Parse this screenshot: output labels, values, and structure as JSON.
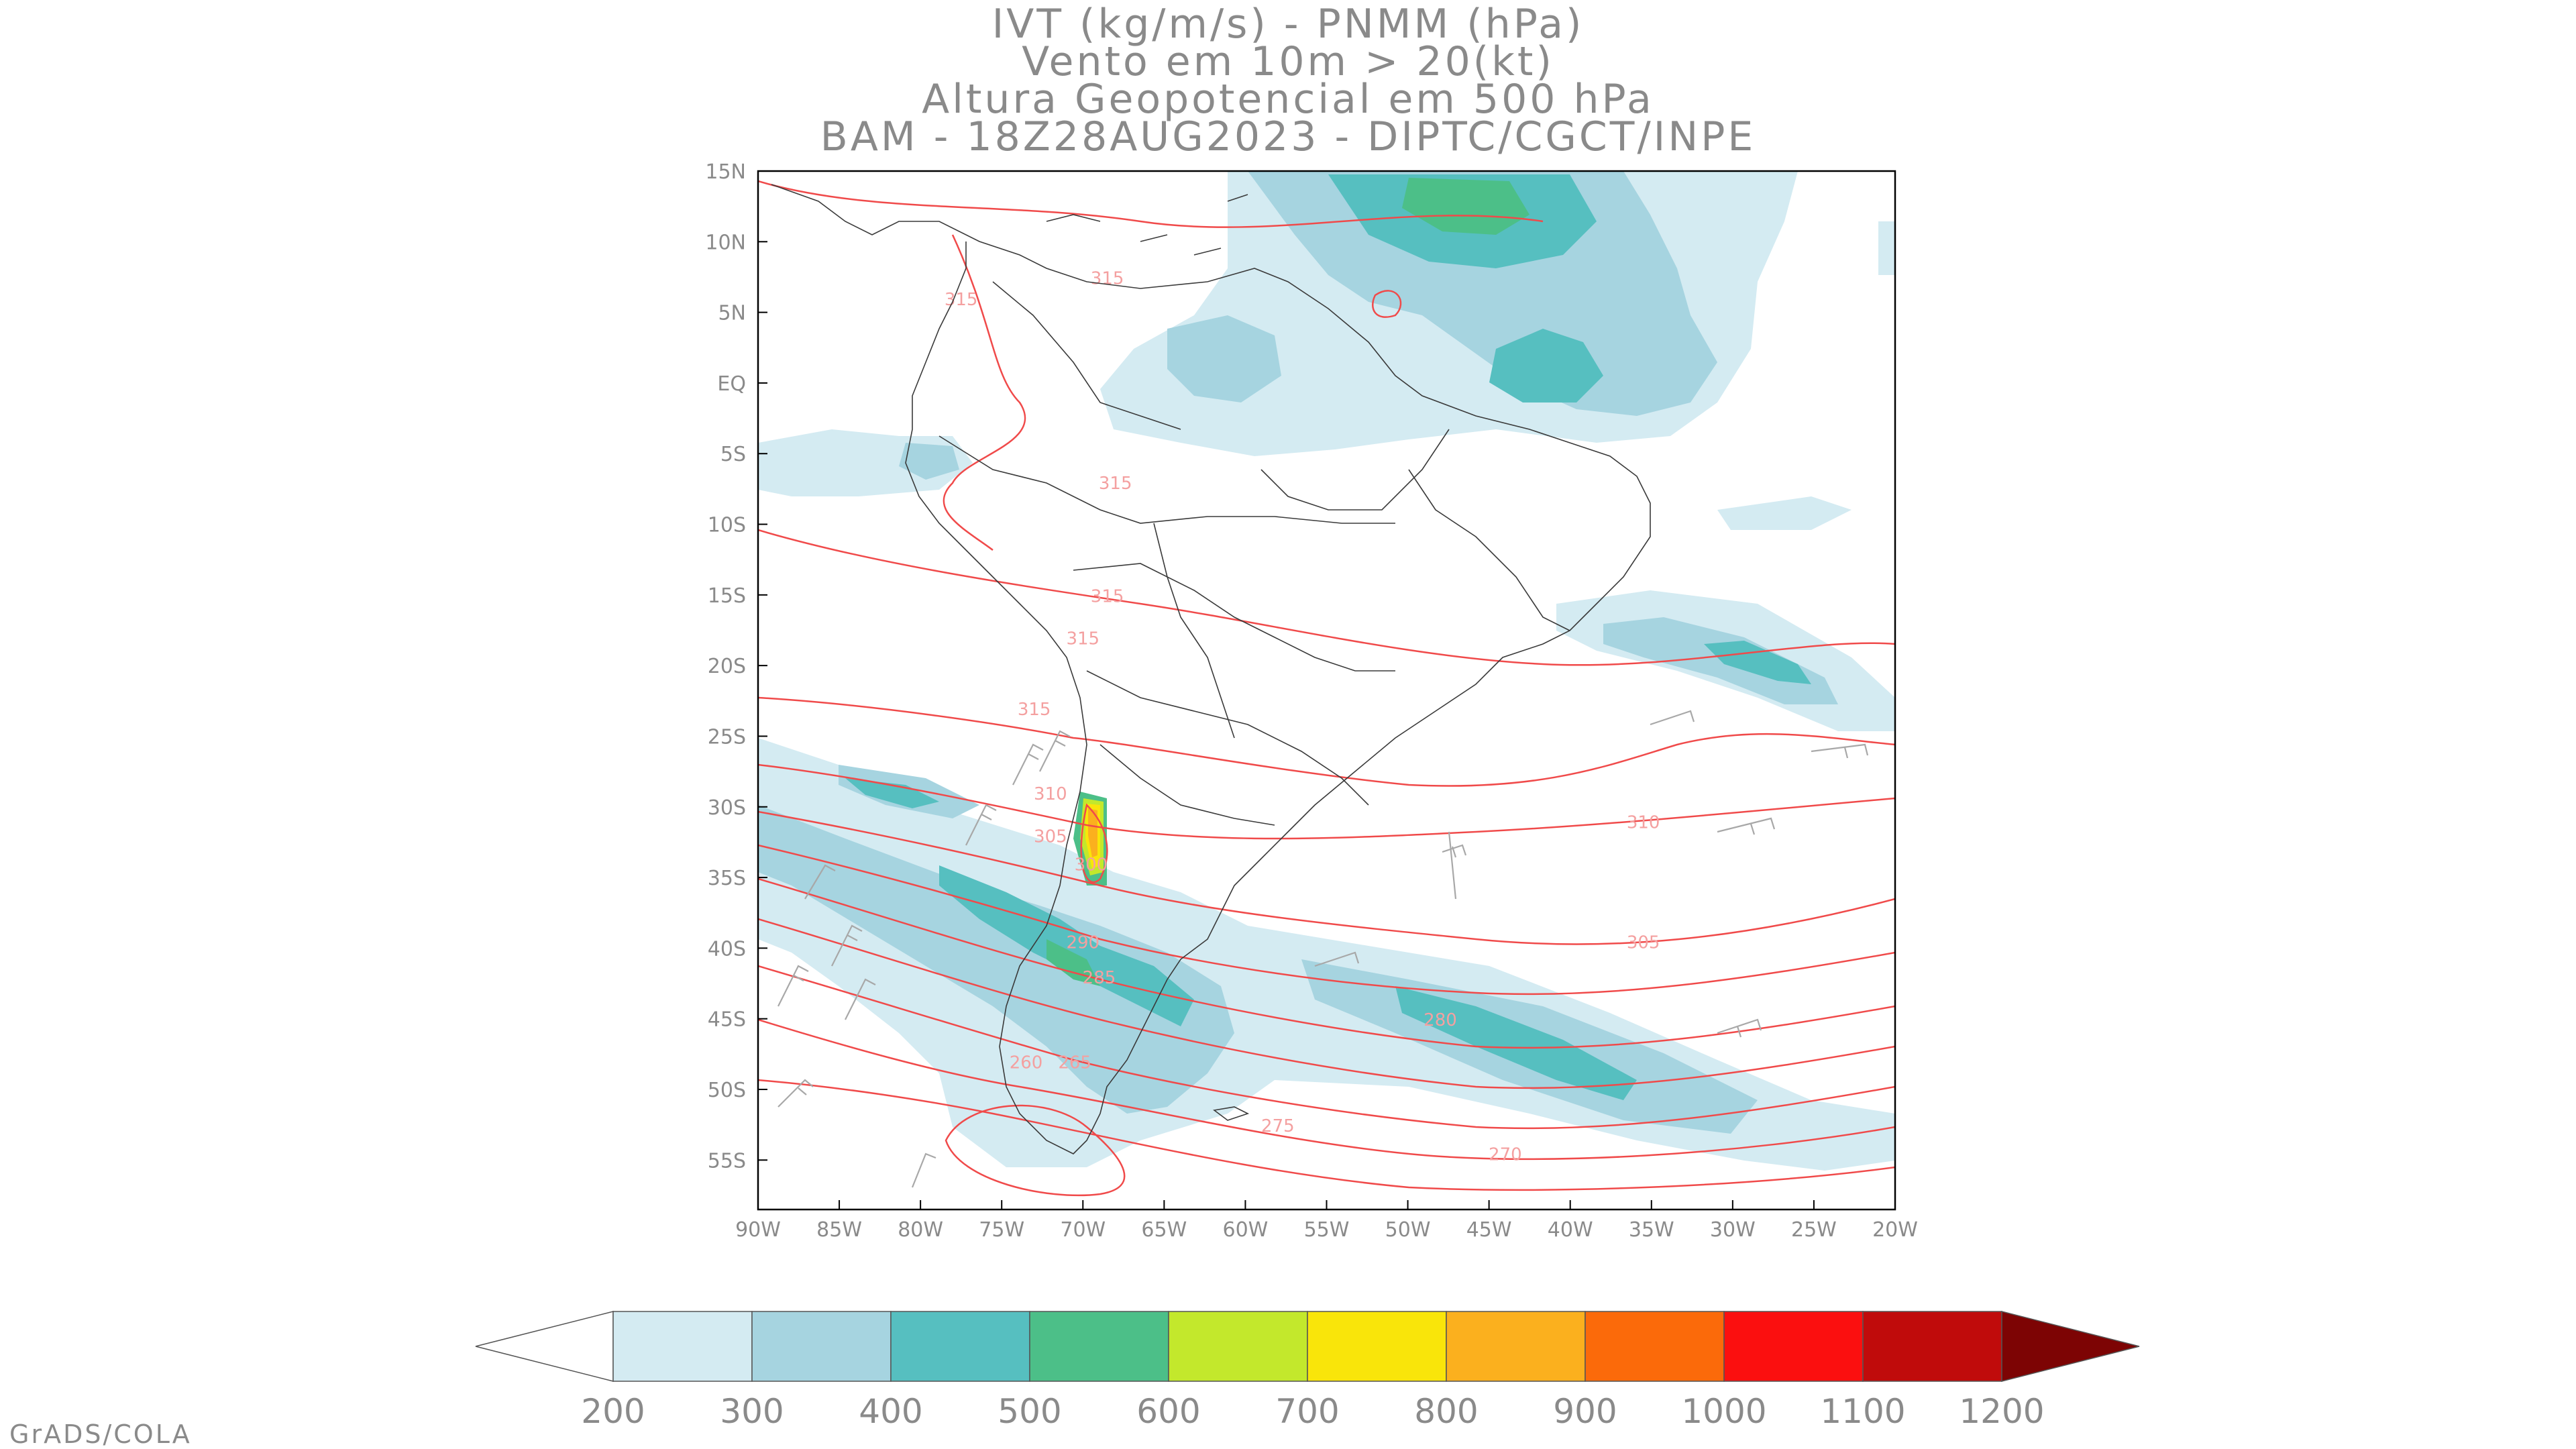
{
  "title_lines": [
    "IVT (kg/m/s) - PNMM (hPa)",
    "Vento em 10m > 20(kt)",
    "Altura Geopotencial em 500 hPa",
    "BAM - 18Z28AUG2023 - DIPTC/CGCT/INPE"
  ],
  "map": {
    "lat_labels": [
      "15N",
      "10N",
      "5N",
      "EQ",
      "5S",
      "10S",
      "15S",
      "20S",
      "25S",
      "30S",
      "35S",
      "40S",
      "45S",
      "50S",
      "55S"
    ],
    "lon_labels": [
      "90W",
      "85W",
      "80W",
      "75W",
      "70W",
      "65W",
      "60W",
      "55W",
      "50W",
      "45W",
      "40W",
      "35W",
      "30W",
      "25W",
      "20W"
    ],
    "extent": {
      "lon": [
        -90,
        -20
      ],
      "lat": [
        -58.5,
        15
      ]
    },
    "contour_labels": [
      {
        "text": "315",
        "lon": -68.5,
        "lat": 7.0
      },
      {
        "text": "315",
        "lon": -77.5,
        "lat": 5.5
      },
      {
        "text": "315",
        "lon": -68.0,
        "lat": -7.5
      },
      {
        "text": "315",
        "lon": -68.5,
        "lat": -15.5
      },
      {
        "text": "315",
        "lon": -70.0,
        "lat": -18.5
      },
      {
        "text": "315",
        "lon": -73.0,
        "lat": -23.5
      },
      {
        "text": "310",
        "lon": -72.0,
        "lat": -29.5
      },
      {
        "text": "305",
        "lon": -72.0,
        "lat": -32.5
      },
      {
        "text": "310",
        "lon": -35.5,
        "lat": -31.5
      },
      {
        "text": "300",
        "lon": -69.5,
        "lat": -34.5
      },
      {
        "text": "305",
        "lon": -35.5,
        "lat": -40.0
      },
      {
        "text": "290",
        "lon": -70.0,
        "lat": -40.0
      },
      {
        "text": "285",
        "lon": -69.0,
        "lat": -42.5
      },
      {
        "text": "280",
        "lon": -48.0,
        "lat": -45.5
      },
      {
        "text": "260",
        "lon": -73.5,
        "lat": -48.5
      },
      {
        "text": "265",
        "lon": -70.5,
        "lat": -48.5
      },
      {
        "text": "275",
        "lon": -58.0,
        "lat": -53.0
      },
      {
        "text": "270",
        "lon": -44.0,
        "lat": -55.0
      }
    ]
  },
  "colorbar": {
    "labels": [
      "200",
      "300",
      "400",
      "500",
      "600",
      "700",
      "800",
      "900",
      "1000",
      "1100",
      "1200"
    ],
    "colors": [
      "#d4ebf2",
      "#a6d4e0",
      "#56bfc0",
      "#4cbf88",
      "#c3e82c",
      "#f9e50a",
      "#fbb01e",
      "#fb6a0a",
      "#fb0f0f",
      "#c00b0b",
      "#7d0404"
    ]
  },
  "colors": {
    "contour": "#f04a4a",
    "contour_label": "#f4a0a0",
    "coast": "#3a3a3a",
    "wind_barb": "#a8a8a8",
    "frame": "#000000",
    "text": "#8a8a8a"
  },
  "credit": "GrADS/COLA"
}
